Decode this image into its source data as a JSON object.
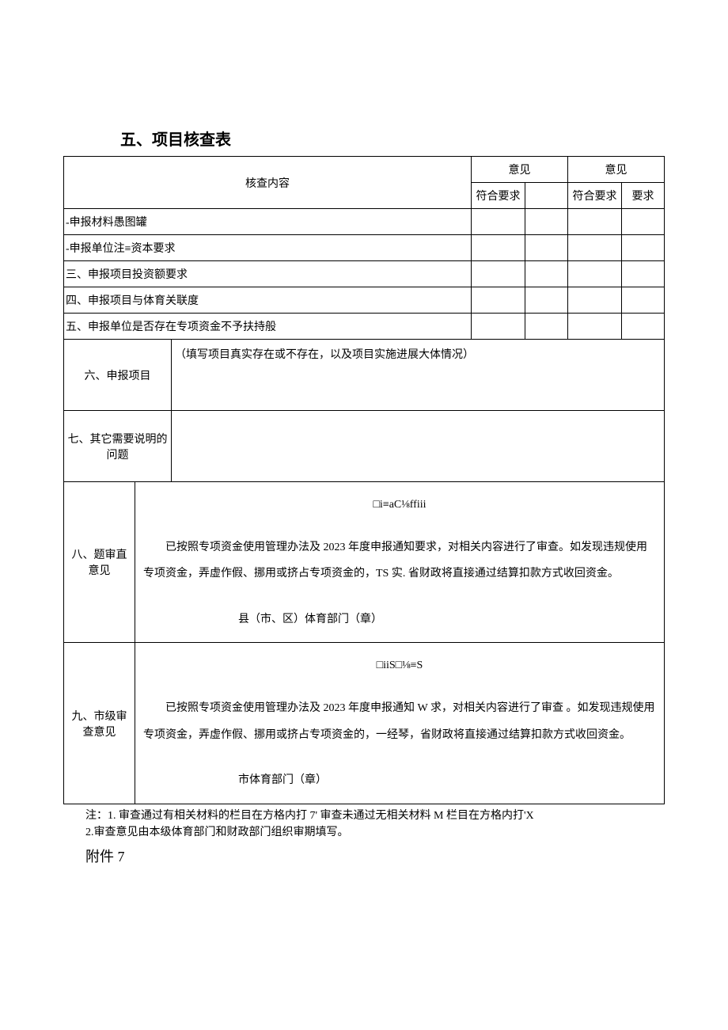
{
  "section_title": "五、项目核查表",
  "table": {
    "header": {
      "check_content": "核查内容",
      "opinion1_top": "意见",
      "opinion1_sub": "符合要求",
      "opinion2_top": "意见",
      "opinion2_sub_a": "符合要求",
      "opinion2_sub_b": "要求"
    },
    "rows": {
      "r1": "-申报材料愚图罐",
      "r2": "-申报单位注≡资本要求",
      "r3": "三、申报项目投资额要求",
      "r4": "四、申报项目与体育关联度",
      "r5": "五、申报单位是否存在专项资金不予扶持般",
      "r6_label": "六、申报项目",
      "r6_hint": "（填写项目真实存在或不存在，以及项目实施进展大体情况）",
      "r7_label": "七、其它需要说明的问题",
      "r8_label": "八、题审直意见",
      "r8_placeholder": "□i≡aC⅛ffiii",
      "r8_body": "已按照专项资金使用管理办法及 2023 年度申报通知要求，对相关内容进行了审查。如发现违规使用专项资金，弄虚作假、挪用或挤占专项资金的，TS 实. 省财政将直接通过结算扣款方式收回资金。",
      "r8_seal": "县（市、区）体育部门（章）",
      "r9_label": "九、市级审查意见",
      "r9_placeholder": "□iiS□⅛≡S",
      "r9_body": "已按照专项资金使用管理办法及 2023 年度申报通知 W 求，对相关内容进行了审查 。如发现违规使用专项资金，弄虚作假、挪用或挤占专项资金的，一经琴，省财政将直接通过结算扣款方式收回资金。",
      "r9_seal": "市体育部门（章）"
    }
  },
  "notes": {
    "n1": "注：1. 审查通过有相关材料的栏目在方格内打 7' 审查未通过无相关材料 M 栏目在方格内打'X",
    "n2": "2.审查意见由本级体育部门和财政部门组织审期填写。"
  },
  "attachment": "附件 7"
}
